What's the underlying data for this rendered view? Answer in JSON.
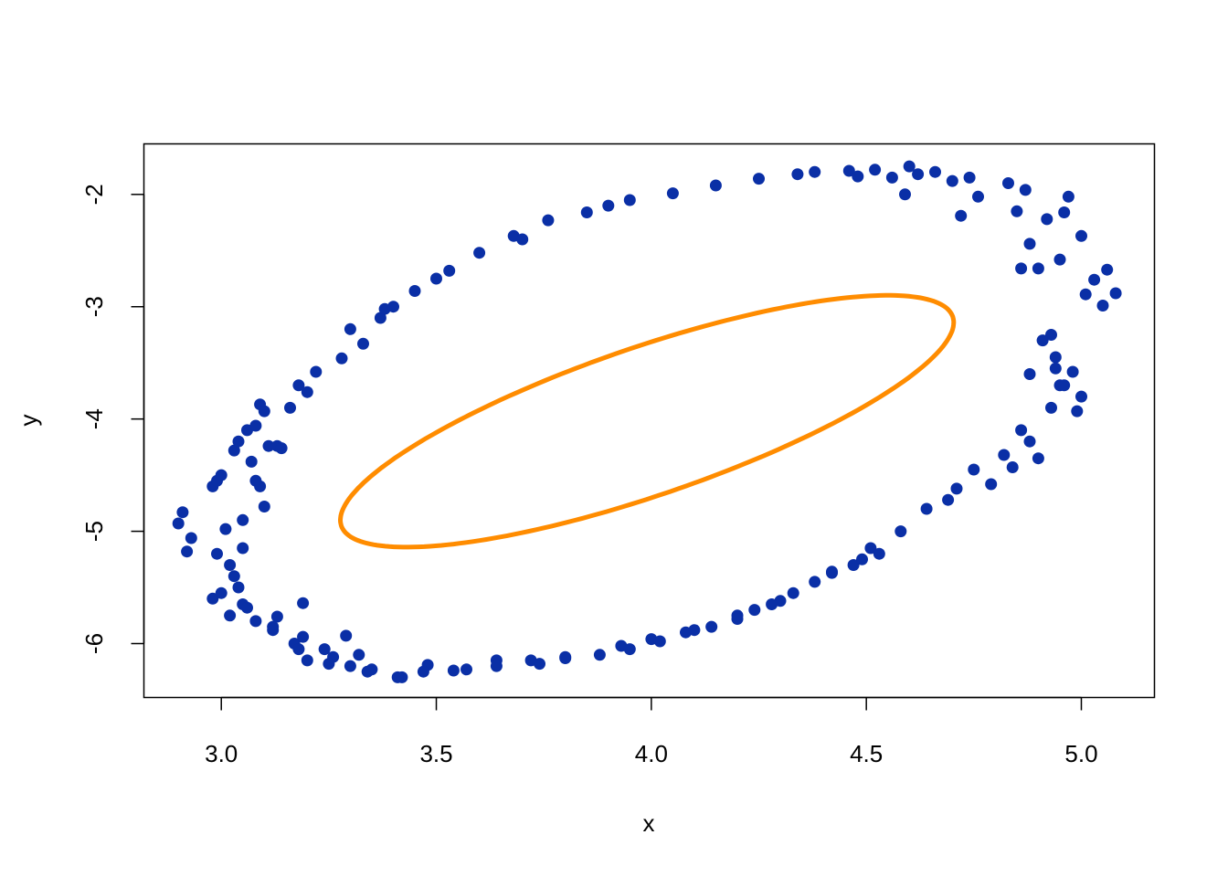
{
  "chart_data": {
    "type": "scatter",
    "title": "",
    "xlabel": "x",
    "ylabel": "y",
    "xlim": [
      2.82,
      5.17
    ],
    "ylim": [
      -6.48,
      -1.55
    ],
    "x_ticks": [
      3.0,
      3.5,
      4.0,
      4.5,
      5.0
    ],
    "x_tick_labels": [
      "3.0",
      "3.5",
      "4.0",
      "4.5",
      "5.0"
    ],
    "y_ticks": [
      -2,
      -3,
      -4,
      -5,
      -6
    ],
    "y_tick_labels": [
      "-2",
      "-3",
      "-4",
      "-5",
      "-6"
    ],
    "grid": false,
    "colors": {
      "points": "#0a2fa6",
      "curve": "#ff8c00"
    },
    "series": [
      {
        "kind": "points",
        "x": [
          2.9,
          2.91,
          2.92,
          2.93,
          2.98,
          2.98,
          2.99,
          2.99,
          3.0,
          3.0,
          3.01,
          3.02,
          3.02,
          3.03,
          3.03,
          3.04,
          3.04,
          3.05,
          3.05,
          3.06,
          3.06,
          3.07,
          3.08,
          3.08,
          3.09,
          3.09,
          3.1,
          3.1,
          3.11,
          3.12,
          3.13,
          3.13,
          3.14,
          3.16,
          3.17,
          3.18,
          3.19,
          3.19,
          3.2,
          3.2,
          3.22,
          3.24,
          3.26,
          3.28,
          3.29,
          3.3,
          3.32,
          3.33,
          3.35,
          3.37,
          3.38,
          3.4,
          3.42,
          3.45,
          3.48,
          3.5,
          3.53,
          3.57,
          3.6,
          3.64,
          3.68,
          3.7,
          3.74,
          3.76,
          3.8,
          3.85,
          3.9,
          3.93,
          3.95,
          4.0,
          4.05,
          4.1,
          4.15,
          4.2,
          4.25,
          4.3,
          4.34,
          4.38,
          4.42,
          4.46,
          4.48,
          4.52,
          4.56,
          4.59,
          4.6,
          4.62,
          4.66,
          4.7,
          4.72,
          4.74,
          4.76,
          4.79,
          4.83,
          4.85,
          4.86,
          4.87,
          4.88,
          4.9,
          4.92,
          4.93,
          4.94,
          4.95,
          4.96,
          4.97,
          5.0,
          5.01,
          5.03,
          5.05,
          5.06,
          5.08,
          3.05,
          3.08,
          3.12,
          3.18,
          3.25,
          3.3,
          3.34,
          3.41,
          3.47,
          3.54,
          3.64,
          3.72,
          3.8,
          3.88,
          3.95,
          4.02,
          4.08,
          4.14,
          4.2,
          4.24,
          4.28,
          4.33,
          4.38,
          4.42,
          4.47,
          4.49,
          4.51,
          4.53,
          4.58,
          4.64,
          4.69,
          4.71,
          4.75,
          4.82,
          4.84,
          4.86,
          4.88,
          4.9,
          4.93,
          4.95,
          4.98,
          5.0,
          4.99,
          4.96,
          4.94,
          4.91,
          4.88
        ],
        "y": [
          -4.93,
          -4.83,
          -5.18,
          -5.06,
          -4.6,
          -5.6,
          -4.55,
          -5.2,
          -4.5,
          -5.55,
          -4.98,
          -5.75,
          -5.3,
          -4.28,
          -5.4,
          -4.2,
          -5.5,
          -4.9,
          -5.65,
          -4.1,
          -5.68,
          -4.38,
          -4.06,
          -5.8,
          -3.87,
          -4.6,
          -3.93,
          -4.78,
          -4.24,
          -5.88,
          -4.24,
          -5.76,
          -4.26,
          -3.9,
          -6.0,
          -3.7,
          -5.94,
          -5.64,
          -3.76,
          -6.15,
          -3.58,
          -6.05,
          -6.12,
          -3.46,
          -5.93,
          -3.2,
          -6.1,
          -3.33,
          -6.23,
          -3.1,
          -3.02,
          -3.0,
          -6.3,
          -2.86,
          -6.19,
          -2.75,
          -2.68,
          -6.23,
          -2.52,
          -6.15,
          -2.37,
          -2.4,
          -6.18,
          -2.23,
          -6.12,
          -2.16,
          -2.1,
          -6.02,
          -2.05,
          -5.96,
          -1.99,
          -5.88,
          -1.92,
          -5.75,
          -1.86,
          -5.62,
          -1.82,
          -1.8,
          -5.37,
          -1.79,
          -1.84,
          -1.78,
          -1.85,
          -2.0,
          -1.75,
          -1.82,
          -1.8,
          -1.88,
          -2.19,
          -1.85,
          -2.02,
          -4.58,
          -1.9,
          -2.15,
          -2.66,
          -1.96,
          -2.44,
          -2.66,
          -2.22,
          -3.25,
          -3.45,
          -2.58,
          -2.16,
          -2.02,
          -2.37,
          -2.89,
          -2.76,
          -2.99,
          -2.67,
          -2.88,
          -5.15,
          -4.55,
          -5.85,
          -6.05,
          -6.18,
          -6.2,
          -6.25,
          -6.3,
          -6.25,
          -6.24,
          -6.2,
          -6.15,
          -6.13,
          -6.1,
          -6.05,
          -5.98,
          -5.9,
          -5.85,
          -5.78,
          -5.7,
          -5.65,
          -5.55,
          -5.45,
          -5.36,
          -5.3,
          -5.25,
          -5.15,
          -5.2,
          -5.0,
          -4.8,
          -4.72,
          -4.62,
          -4.45,
          -4.32,
          -4.43,
          -4.1,
          -4.2,
          -4.35,
          -3.9,
          -3.7,
          -3.58,
          -3.8,
          -3.93,
          -3.7,
          -3.55,
          -3.3,
          -3.6
        ]
      },
      {
        "kind": "ellipse-curve",
        "center": [
          3.99,
          -4.02
        ],
        "semi_major": 1.27,
        "semi_minor": 0.39,
        "angle_deg": 60.4
      }
    ]
  }
}
